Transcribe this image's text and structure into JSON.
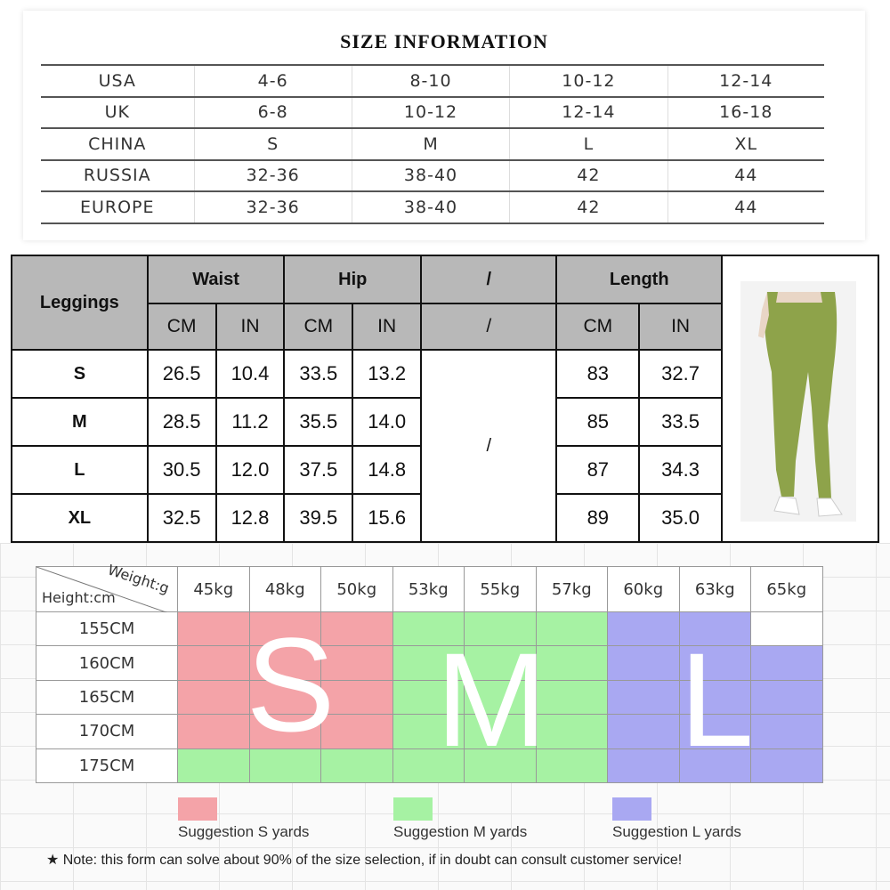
{
  "size_info": {
    "title": "SIZE INFORMATION",
    "rows": [
      [
        "USA",
        "4-6",
        "8-10",
        "10-12",
        "12-14"
      ],
      [
        "UK",
        "6-8",
        "10-12",
        "12-14",
        "16-18"
      ],
      [
        "CHINA",
        "S",
        "M",
        "L",
        "XL"
      ],
      [
        "RUSSIA",
        "32-36",
        "38-40",
        "42",
        "44"
      ],
      [
        "EUROPE",
        "32-36",
        "38-40",
        "42",
        "44"
      ]
    ]
  },
  "leggings": {
    "label": "Leggings",
    "headers": {
      "waist": "Waist",
      "hip": "Hip",
      "slash": "/",
      "length": "Length"
    },
    "units": {
      "cm": "CM",
      "in": "IN",
      "slash": "/"
    },
    "rows": [
      {
        "size": "S",
        "waist_cm": "26.5",
        "waist_in": "10.4",
        "hip_cm": "33.5",
        "hip_in": "13.2",
        "len_cm": "83",
        "len_in": "32.7"
      },
      {
        "size": "M",
        "waist_cm": "28.5",
        "waist_in": "11.2",
        "hip_cm": "35.5",
        "hip_in": "14.0",
        "len_cm": "85",
        "len_in": "33.5"
      },
      {
        "size": "L",
        "waist_cm": "30.5",
        "waist_in": "12.0",
        "hip_cm": "37.5",
        "hip_in": "14.8",
        "len_cm": "87",
        "len_in": "34.3"
      },
      {
        "size": "XL",
        "waist_cm": "32.5",
        "waist_in": "12.8",
        "hip_cm": "39.5",
        "hip_in": "15.6",
        "len_cm": "89",
        "len_in": "35.0"
      }
    ],
    "middle_slash": "/",
    "photo_color": "#8ea34a"
  },
  "weight_chart": {
    "weight_label": "Weight:g",
    "height_label": "Height:cm",
    "weights": [
      "45kg",
      "48kg",
      "50kg",
      "53kg",
      "55kg",
      "57kg",
      "60kg",
      "63kg",
      "65kg"
    ],
    "heights": [
      "155CM",
      "160CM",
      "165CM",
      "170CM",
      "175CM"
    ],
    "grid": [
      [
        "s",
        "s",
        "s",
        "m",
        "m",
        "m",
        "l",
        "l",
        "w"
      ],
      [
        "s",
        "s",
        "s",
        "m",
        "m",
        "m",
        "l",
        "l",
        "l"
      ],
      [
        "s",
        "s",
        "s",
        "m",
        "m",
        "m",
        "l",
        "l",
        "l"
      ],
      [
        "s",
        "s",
        "s",
        "m",
        "m",
        "m",
        "l",
        "l",
        "l"
      ],
      [
        "m",
        "m",
        "m",
        "m",
        "m",
        "m",
        "l",
        "l",
        "l"
      ]
    ],
    "big_letters": {
      "s": "S",
      "m": "M",
      "l": "L"
    },
    "colors": {
      "s": "#f4a3a8",
      "m": "#a6f2a3",
      "l": "#a9a8f2"
    },
    "legend": {
      "s": "Suggestion S yards",
      "m": "Suggestion M yards",
      "l": "Suggestion L yards"
    },
    "note": "★ Note: this form can solve about 90% of the size selection, if in doubt can consult customer service!"
  }
}
